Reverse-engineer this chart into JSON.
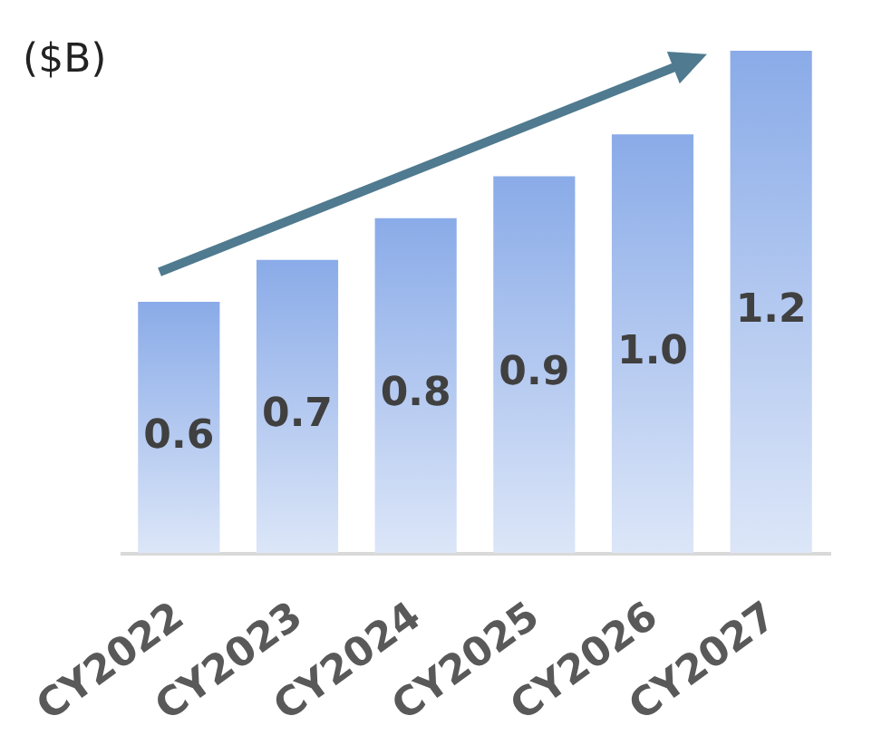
{
  "chart_data": {
    "type": "bar",
    "ylabel": "($B)",
    "categories": [
      "CY2022",
      "CY2023",
      "CY2024",
      "CY2025",
      "CY2026",
      "CY2027"
    ],
    "values": [
      0.6,
      0.7,
      0.8,
      0.9,
      1.0,
      1.2
    ],
    "color": "#8aabe8",
    "value_labels": [
      "0.6",
      "0.7",
      "0.8",
      "0.9",
      "1.0",
      "1.2"
    ]
  }
}
